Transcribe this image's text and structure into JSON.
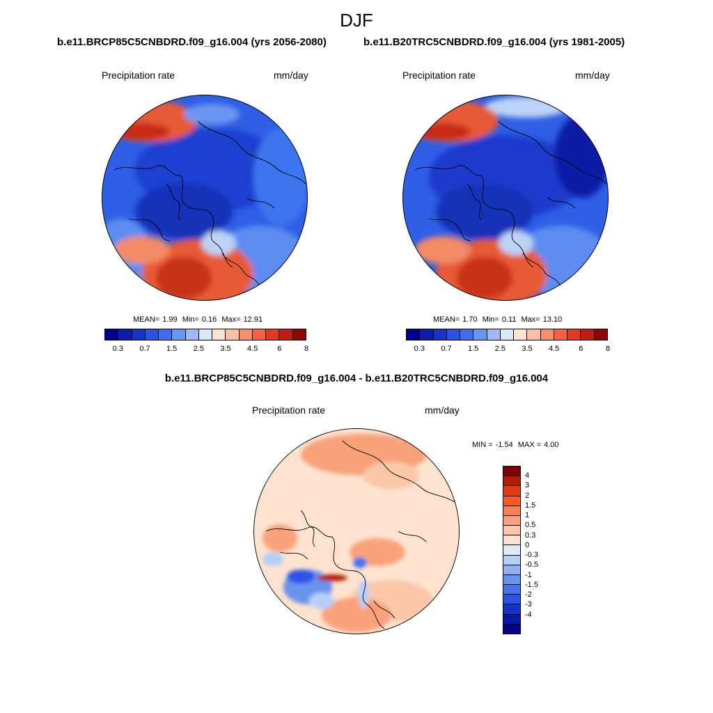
{
  "figure": {
    "season": "DJF",
    "variable": "Precipitation rate",
    "units": "mm/day"
  },
  "panels": [
    {
      "case_title": "b.e11.BRCP85C5CNBDRD.f09_g16.004 (yrs 2056-2080)",
      "stats": {
        "mean_label": "MEAN=",
        "mean": "1.99",
        "min_label": "Min=",
        "min": "0.16",
        "max_label": "Max=",
        "max": "12.91"
      }
    },
    {
      "case_title": "b.e11.B20TRC5CNBDRD.f09_g16.004 (yrs 1981-2005)",
      "stats": {
        "mean_label": "MEAN=",
        "mean": "1.70",
        "min_label": "Min=",
        "min": "0.11",
        "max_label": "Max=",
        "max": "13.10"
      }
    }
  ],
  "colorbar_abs": {
    "colors": [
      "#00008f",
      "#0a1fa6",
      "#1535c7",
      "#2653e0",
      "#3b6ff0",
      "#6a96f2",
      "#9cbcf5",
      "#d8e8fa",
      "#fde3d2",
      "#fbc0a2",
      "#f7916d",
      "#f36341",
      "#e23a1f",
      "#bf1e10",
      "#8c0707"
    ],
    "tick_labels": [
      "0.3",
      "0.7",
      "1.5",
      "2.5",
      "3.5",
      "4.5",
      "6",
      "8"
    ]
  },
  "difference": {
    "title": "b.e11.BRCP85C5CNBDRD.f09_g16.004 - b.e11.B20TRC5CNBDRD.f09_g16.004",
    "min_label": "MIN =",
    "min": "-1.54",
    "max_label": "MAX =",
    "max": "4.00",
    "colorbar": {
      "colors": [
        "#7f0000",
        "#b31c00",
        "#e33b12",
        "#ff5a26",
        "#f7824e",
        "#f9a27a",
        "#fbc7a8",
        "#fde3cf",
        "#ddeaf8",
        "#b7cff6",
        "#8fb1f2",
        "#6a93ee",
        "#4672eb",
        "#2a52e4",
        "#1432c9",
        "#0818a6",
        "#00008a"
      ],
      "tick_labels": [
        "4",
        "3",
        "2",
        "1.5",
        "1",
        "0.5",
        "0.3",
        "0",
        "-0.3",
        "-0.5",
        "-1",
        "-1.5",
        "-2",
        "-3",
        "-4"
      ]
    }
  }
}
